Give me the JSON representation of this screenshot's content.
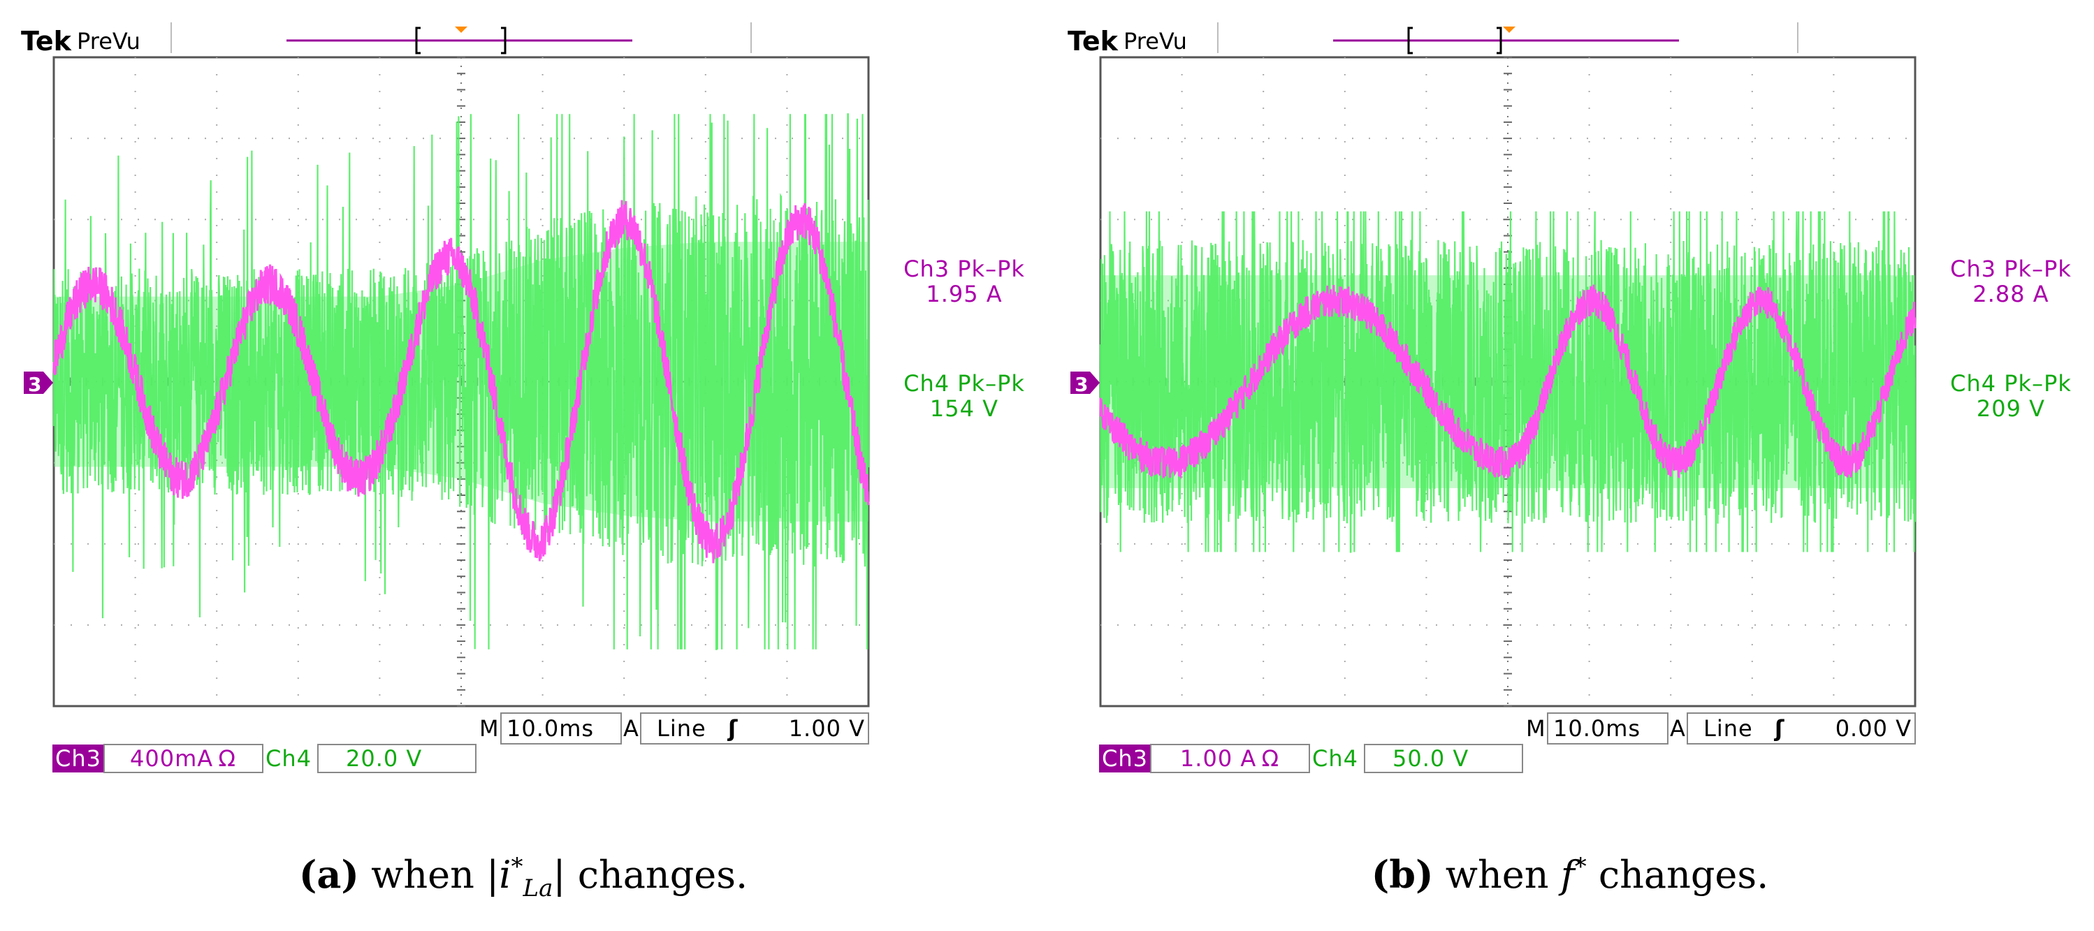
{
  "figure": {
    "panels": [
      {
        "id": "a",
        "brand": "Tek",
        "mode": "PreVu",
        "meas": {
          "ch3_label": "Ch3 Pk–Pk",
          "ch3_value": "1.95 A",
          "ch4_label": "Ch4 Pk–Pk",
          "ch4_value": "154 V"
        },
        "bottom": {
          "ch3_tag": "Ch3",
          "ch3_scale": "400mA Ω",
          "ch4_tag": "Ch4",
          "ch4_scale": "20.0 V",
          "m_tag": "M",
          "timebase": "10.0ms",
          "a_tag": "A",
          "trigger_source": "Line",
          "trigger_slope": "ʃ",
          "trigger_level": "1.00 V"
        },
        "marker": "3",
        "caption": {
          "label": "(a)",
          "pre": "when |",
          "math": "i",
          "sub": "La",
          "sup": "*",
          "post": "| changes."
        }
      },
      {
        "id": "b",
        "brand": "Tek",
        "mode": "PreVu",
        "meas": {
          "ch3_label": "Ch3 Pk–Pk",
          "ch3_value": "2.88 A",
          "ch4_label": "Ch4 Pk–Pk",
          "ch4_value": "209 V"
        },
        "bottom": {
          "ch3_tag": "Ch3",
          "ch3_scale": "1.00 A Ω",
          "ch4_tag": "Ch4",
          "ch4_scale": "50.0 V",
          "m_tag": "M",
          "timebase": "10.0ms",
          "a_tag": "A",
          "trigger_source": "Line",
          "trigger_slope": "ʃ",
          "trigger_level": "0.00 V"
        },
        "marker": "3",
        "caption": {
          "label": "(b)",
          "pre": "when ",
          "math": "f",
          "sub": "",
          "sup": "*",
          "post": " changes."
        }
      }
    ]
  },
  "chart_data": [
    {
      "type": "line",
      "title": "Oscilloscope capture (a): when |i*La| changes",
      "x_unit": "div (10.0 ms/div)",
      "x_range": [
        0,
        10
      ],
      "y_unit": "div",
      "y_range": [
        -4,
        4
      ],
      "grid": "10x8 divisions",
      "colors": {
        "ch3": "#ff55ee",
        "ch4": "#55ee66"
      },
      "series": [
        {
          "name": "Ch3 current (400 mA/div)",
          "x": [
            0,
            0.3,
            1.0,
            2.0,
            3.0,
            4.0,
            5.0,
            6.0,
            7.0,
            8.0,
            9.0,
            10.0
          ],
          "amplitude": [
            1.2,
            1.2,
            1.2,
            1.2,
            1.2,
            1.2,
            1.6,
            2.0,
            2.0,
            2.0,
            2.0,
            2.0
          ],
          "cycles": 4.6,
          "phase_deg": 10,
          "noise_div": 0.25
        },
        {
          "name": "Ch4 voltage (20.0 V/div)",
          "x": [
            0,
            1.0,
            2.0,
            3.0,
            4.0,
            5.0,
            6.0,
            7.0,
            8.0,
            9.0,
            10.0
          ],
          "band_center": [
            0,
            0,
            0,
            0,
            0,
            0,
            0,
            0,
            0,
            0,
            0
          ],
          "band_half": [
            1.4,
            1.4,
            1.4,
            1.4,
            1.4,
            1.6,
            2.0,
            2.2,
            2.3,
            2.3,
            2.3
          ],
          "spike_max": 3.3
        }
      ]
    },
    {
      "type": "line",
      "title": "Oscilloscope capture (b): when f* changes",
      "x_unit": "div (10.0 ms/div)",
      "x_range": [
        0,
        10
      ],
      "y_unit": "div",
      "y_range": [
        -4,
        4
      ],
      "grid": "10x8 divisions",
      "colors": {
        "ch3": "#ff55ee",
        "ch4": "#55ee66"
      },
      "series": [
        {
          "name": "Ch3 current (1.00 A/div)",
          "x": [
            0,
            5.0,
            5.01,
            10.0
          ],
          "amplitude": [
            1.0,
            1.0,
            1.0,
            1.0
          ],
          "cycles_before_x5": 2.4,
          "cycles_after_x5": 4.8,
          "phase_deg": 200,
          "noise_div": 0.2
        },
        {
          "name": "Ch4 voltage (50.0 V/div)",
          "x": [
            0,
            5.0,
            10.0
          ],
          "band_center": [
            0,
            0,
            0
          ],
          "band_half": [
            1.75,
            1.75,
            1.75
          ],
          "spike_max": 2.1
        }
      ]
    }
  ]
}
